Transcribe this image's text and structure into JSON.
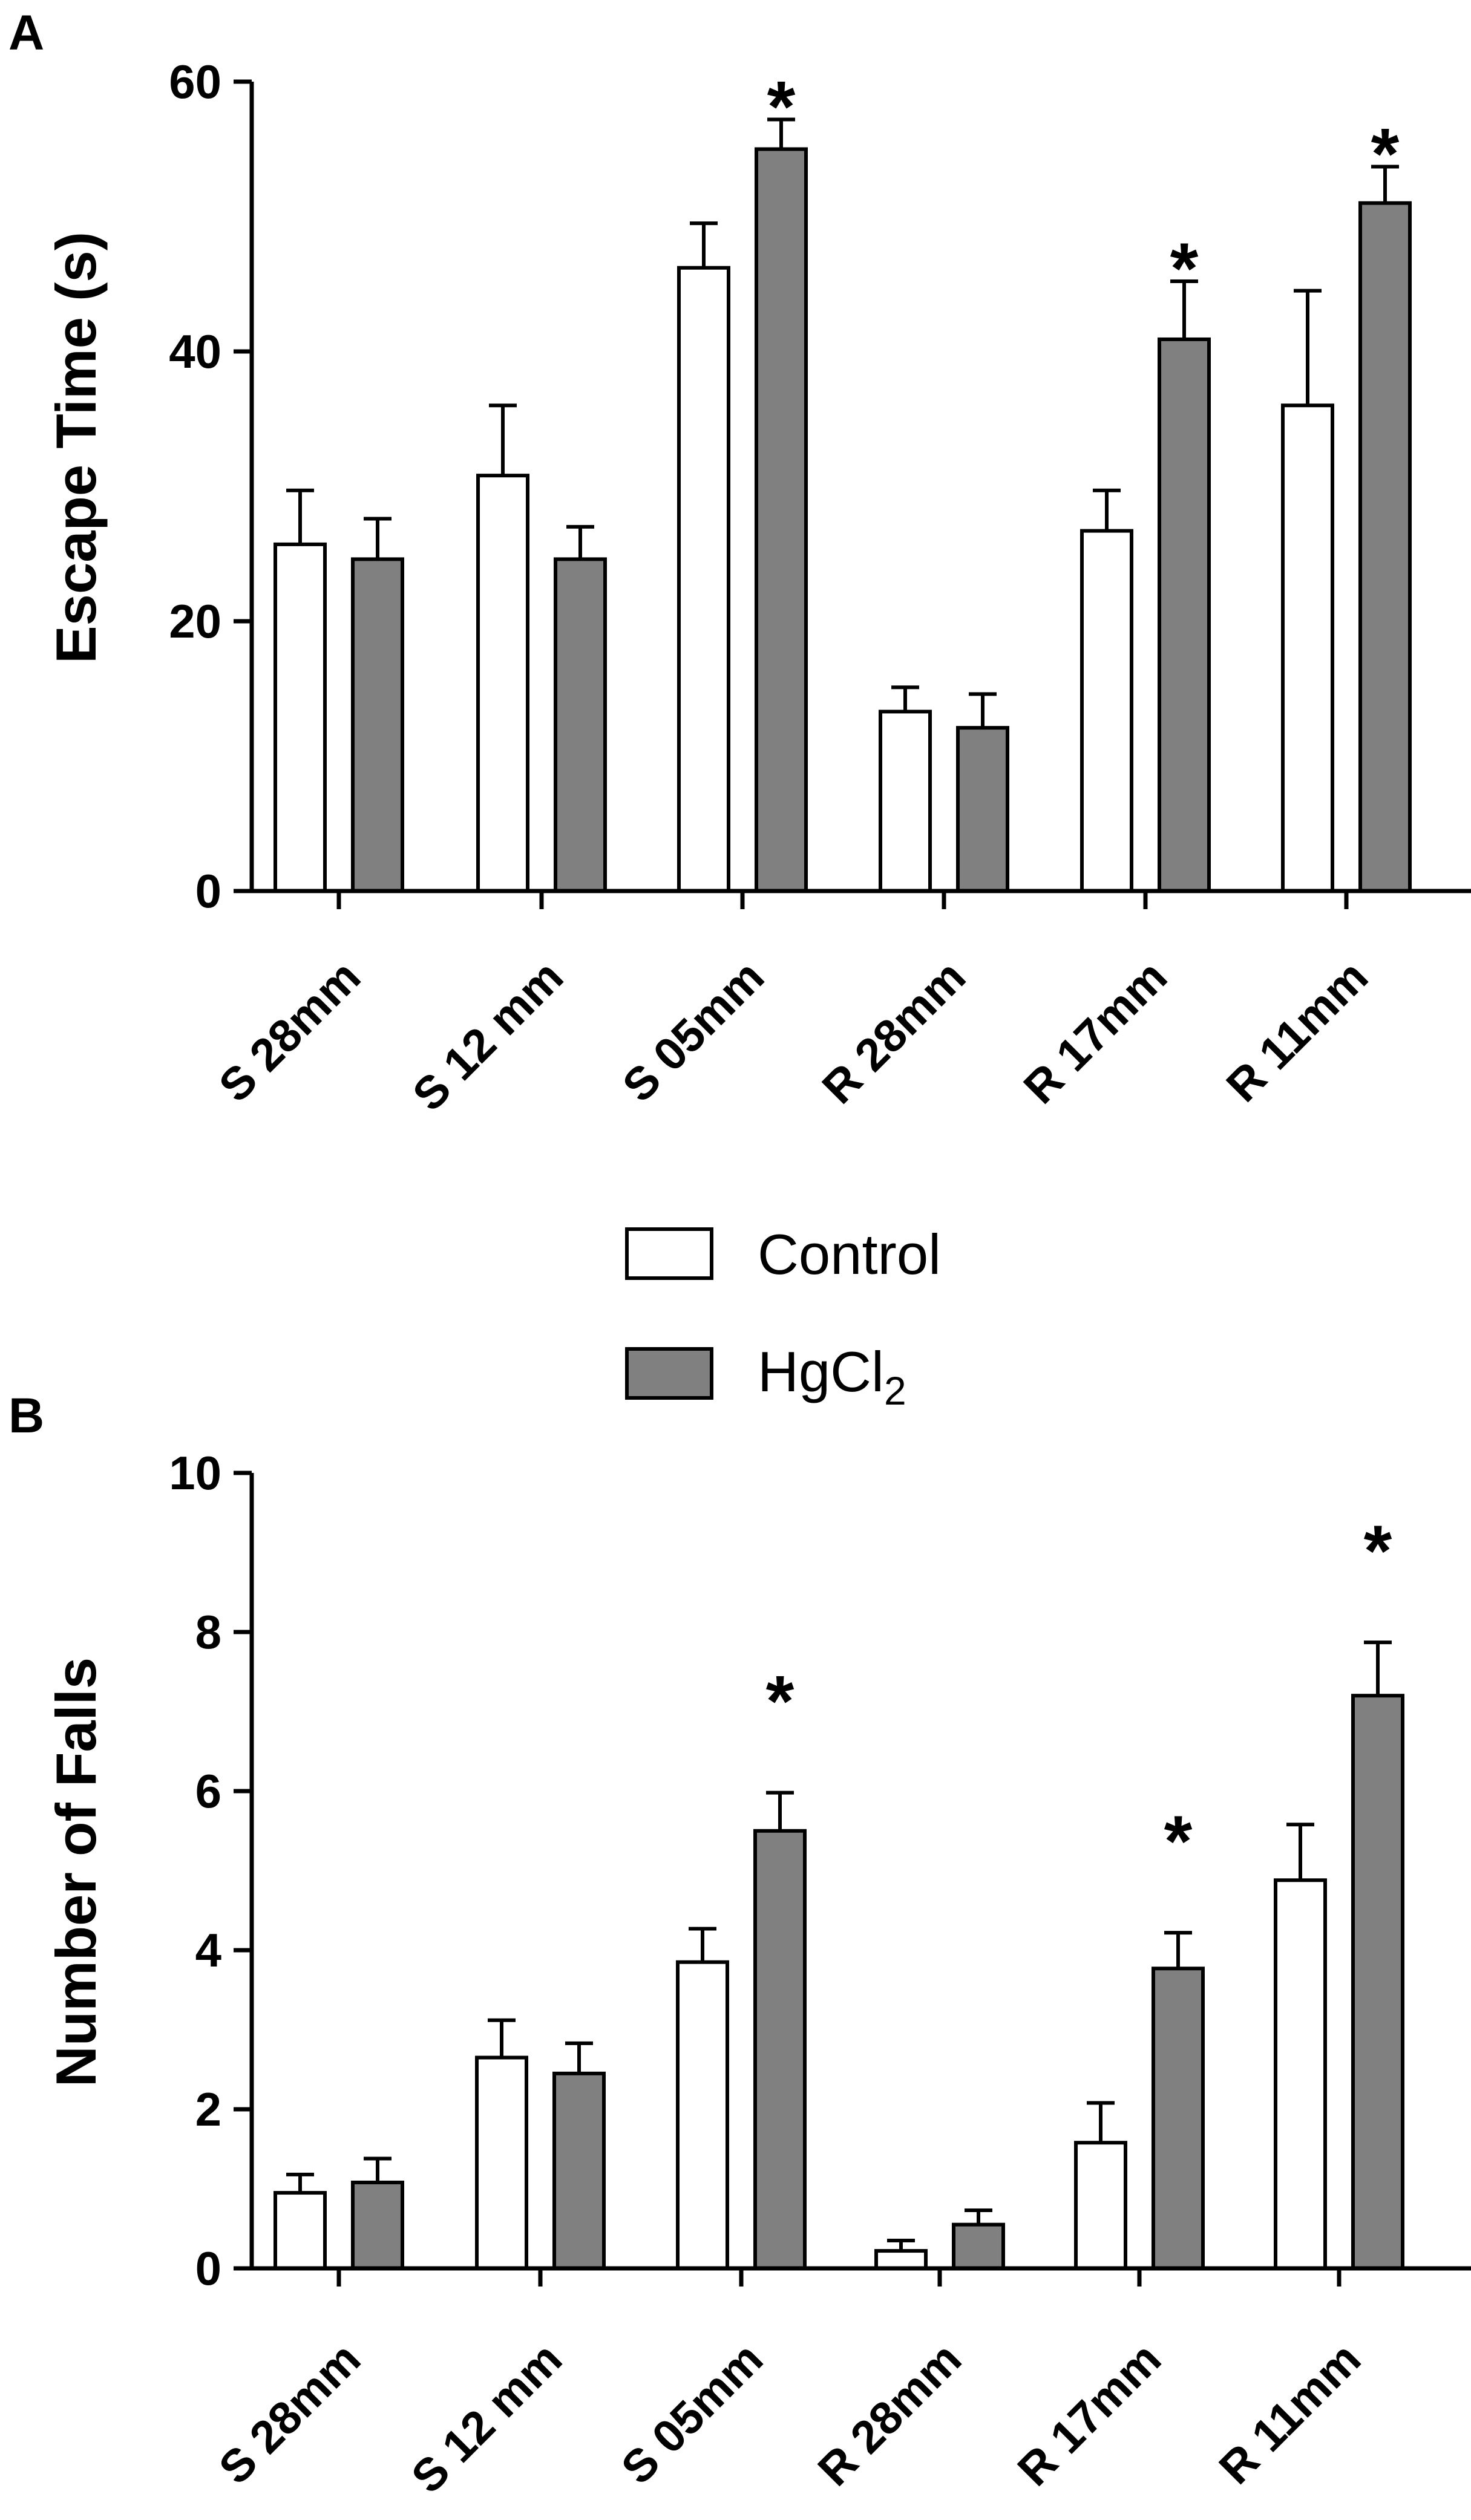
{
  "legend": {
    "control_label": "Control",
    "hgcl2_label_main": "HgCl",
    "hgcl2_label_sub": "2"
  },
  "colors": {
    "control_fill": "#ffffff",
    "hgcl2_fill": "#808080",
    "stroke": "#000000"
  },
  "chart_data": [
    {
      "panel": "A",
      "type": "bar",
      "ylabel": "Escape Time (s)",
      "xlabel": "",
      "ylim": [
        0,
        60
      ],
      "yticks": [
        0,
        20,
        40,
        60
      ],
      "categories": [
        "S 28mm",
        "S 12 mm",
        "S 05mm",
        "R 28mm",
        "R 17mm",
        "R 11mm"
      ],
      "series": [
        {
          "name": "Control",
          "values": [
            25.7,
            30.8,
            46.2,
            13.3,
            26.7,
            36.0
          ],
          "errors": [
            4.0,
            5.2,
            3.3,
            1.8,
            3.0,
            8.5
          ]
        },
        {
          "name": "HgCl2",
          "values": [
            24.6,
            24.6,
            55.0,
            12.1,
            40.9,
            51.0
          ],
          "errors": [
            3.0,
            2.4,
            2.2,
            2.5,
            4.3,
            2.7
          ]
        }
      ],
      "significance": [
        {
          "series": "HgCl2",
          "category": "S 05mm",
          "label": "*"
        },
        {
          "series": "HgCl2",
          "category": "R 17mm",
          "label": "*"
        },
        {
          "series": "HgCl2",
          "category": "R 11mm",
          "label": "*"
        }
      ]
    },
    {
      "panel": "B",
      "type": "bar",
      "ylabel": "Number of Falls",
      "xlabel": "",
      "ylim": [
        0,
        10
      ],
      "yticks": [
        0,
        2,
        4,
        6,
        8,
        10
      ],
      "categories": [
        "S 28mm",
        "S 12 mm",
        "S 05mm",
        "R 28mm",
        "R 17mm",
        "R 11mm"
      ],
      "series": [
        {
          "name": "Control",
          "values": [
            0.95,
            2.65,
            3.85,
            0.22,
            1.58,
            4.88
          ],
          "errors": [
            0.23,
            0.47,
            0.42,
            0.13,
            0.5,
            0.7
          ]
        },
        {
          "name": "HgCl2",
          "values": [
            1.08,
            2.45,
            5.5,
            0.55,
            3.77,
            7.2
          ],
          "errors": [
            0.3,
            0.38,
            0.48,
            0.18,
            0.45,
            0.67
          ]
        }
      ],
      "significance": [
        {
          "series": "HgCl2",
          "category": "S 05mm",
          "label": "*"
        },
        {
          "series": "HgCl2",
          "category": "R 17mm",
          "label": "*"
        },
        {
          "series": "HgCl2",
          "category": "R 11mm",
          "label": "*"
        }
      ]
    }
  ]
}
